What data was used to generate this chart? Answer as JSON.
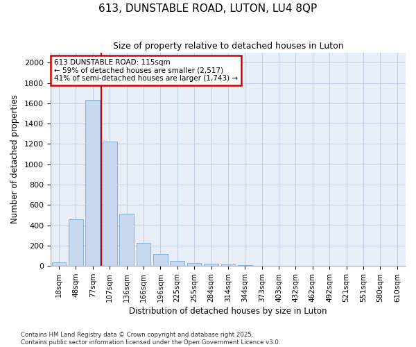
{
  "title": "613, DUNSTABLE ROAD, LUTON, LU4 8QP",
  "subtitle": "Size of property relative to detached houses in Luton",
  "xlabel": "Distribution of detached houses by size in Luton",
  "ylabel": "Number of detached properties",
  "categories": [
    "18sqm",
    "48sqm",
    "77sqm",
    "107sqm",
    "136sqm",
    "166sqm",
    "196sqm",
    "225sqm",
    "255sqm",
    "284sqm",
    "314sqm",
    "344sqm",
    "373sqm",
    "403sqm",
    "432sqm",
    "462sqm",
    "492sqm",
    "521sqm",
    "551sqm",
    "580sqm",
    "610sqm"
  ],
  "values": [
    35,
    460,
    1630,
    1220,
    510,
    225,
    115,
    50,
    30,
    20,
    15,
    10,
    2,
    0,
    0,
    0,
    0,
    0,
    0,
    0,
    0
  ],
  "bar_color": "#c8d8ee",
  "bar_edge_color": "#7aaad4",
  "vline_color": "#cc0000",
  "vline_pos": 2.5,
  "annotation_text": "613 DUNSTABLE ROAD: 115sqm\n← 59% of detached houses are smaller (2,517)\n41% of semi-detached houses are larger (1,743) →",
  "annotation_box_edgecolor": "#cc0000",
  "ylim": [
    0,
    2100
  ],
  "yticks": [
    0,
    200,
    400,
    600,
    800,
    1000,
    1200,
    1400,
    1600,
    1800,
    2000
  ],
  "footnote1": "Contains HM Land Registry data © Crown copyright and database right 2025.",
  "footnote2": "Contains public sector information licensed under the Open Government Licence v3.0.",
  "fig_bg_color": "#ffffff",
  "plot_bg_color": "#e8eef8"
}
